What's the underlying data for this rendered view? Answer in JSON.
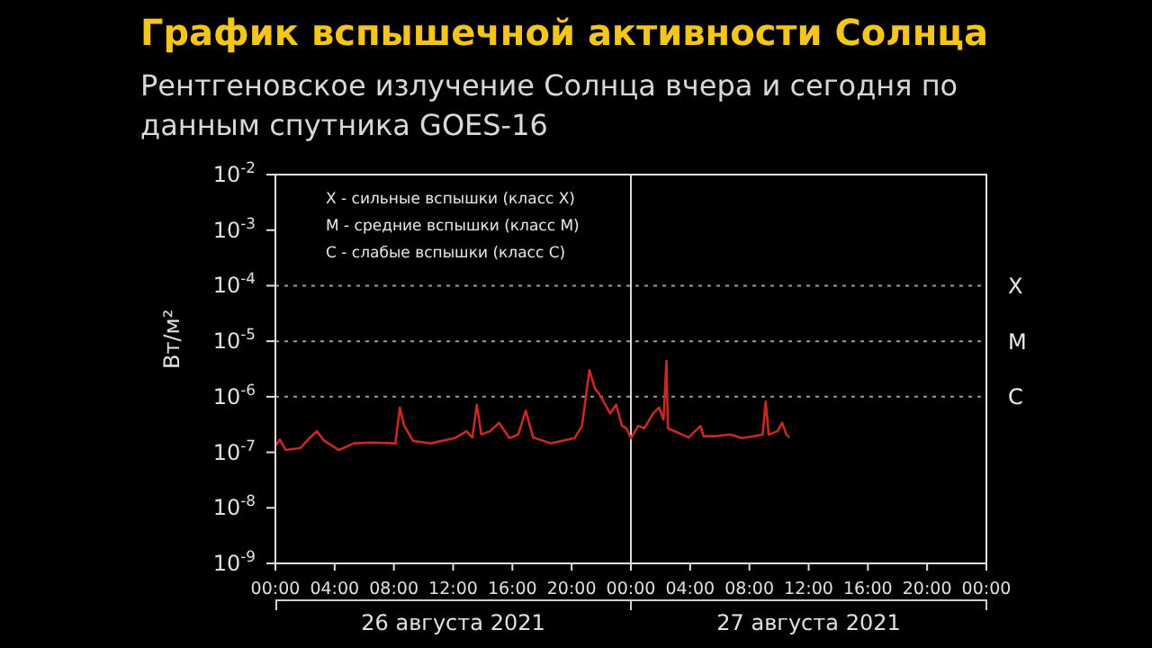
{
  "chart_data": {
    "type": "line",
    "title": "График вспышечной активности Солнца",
    "subtitle": "Рентгеновское излучение Солнца вчера и сегодня по данным спутника GOES-16",
    "ylabel": "Вт/м²",
    "annotations": [
      "X - сильные вспышки (класс X)",
      "M - средние вспышки (класс M)",
      "C - слабые вспышки (класс C)",
      "26 августа 2021",
      "27 августа 2021"
    ],
    "x": [
      "2021-08-26T00:00",
      "2021-08-26T00:18",
      "2021-08-26T00:42",
      "2021-08-26T01:42",
      "2021-08-26T02:18",
      "2021-08-26T02:48",
      "2021-08-26T03:18",
      "2021-08-26T04:18",
      "2021-08-26T05:18",
      "2021-08-26T06:30",
      "2021-08-26T08:06",
      "2021-08-26T08:24",
      "2021-08-26T08:42",
      "2021-08-26T09:18",
      "2021-08-26T10:30",
      "2021-08-26T12:06",
      "2021-08-26T12:54",
      "2021-08-26T13:18",
      "2021-08-26T13:36",
      "2021-08-26T13:54",
      "2021-08-26T14:30",
      "2021-08-26T15:06",
      "2021-08-26T15:48",
      "2021-08-26T16:24",
      "2021-08-26T16:54",
      "2021-08-26T17:24",
      "2021-08-26T18:36",
      "2021-08-26T20:12",
      "2021-08-26T20:42",
      "2021-08-26T21:12",
      "2021-08-26T21:36",
      "2021-08-26T21:48",
      "2021-08-26T22:36",
      "2021-08-26T23:00",
      "2021-08-26T23:24",
      "2021-08-26T23:42",
      "2021-08-27T00:00",
      "2021-08-27T00:30",
      "2021-08-27T00:54",
      "2021-08-27T01:30",
      "2021-08-27T01:54",
      "2021-08-27T02:12",
      "2021-08-27T02:24",
      "2021-08-27T02:30",
      "2021-08-27T03:06",
      "2021-08-27T03:54",
      "2021-08-27T04:42",
      "2021-08-27T04:54",
      "2021-08-27T05:42",
      "2021-08-27T06:42",
      "2021-08-27T07:30",
      "2021-08-27T08:18",
      "2021-08-27T08:54",
      "2021-08-27T09:06",
      "2021-08-27T09:18",
      "2021-08-27T09:54",
      "2021-08-27T10:12",
      "2021-08-27T10:30",
      "2021-08-27T10:42"
    ],
    "values": [
      1.3e-07,
      1.7e-07,
      1.1e-07,
      1.2e-07,
      1.8e-07,
      2.4e-07,
      1.6e-07,
      1.1e-07,
      1.45e-07,
      1.5e-07,
      1.45e-07,
      6.4e-07,
      3e-07,
      1.6e-07,
      1.45e-07,
      1.8e-07,
      2.4e-07,
      1.85e-07,
      7.2e-07,
      2.1e-07,
      2.4e-07,
      3.4e-07,
      1.8e-07,
      2.1e-07,
      5.6e-07,
      1.85e-07,
      1.45e-07,
      1.8e-07,
      3e-07,
      3e-06,
      1.35e-06,
      1.2e-06,
      5e-07,
      7.2e-07,
      3e-07,
      2.7e-07,
      1.8e-07,
      3e-07,
      2.7e-07,
      5e-07,
      6.4e-07,
      3.9e-07,
      4.4e-06,
      2.7e-07,
      2.3e-07,
      1.85e-07,
      3e-07,
      1.95e-07,
      1.95e-07,
      2.1e-07,
      1.8e-07,
      1.95e-07,
      2.1e-07,
      8.2e-07,
      2.1e-07,
      2.4e-07,
      3.4e-07,
      2.1e-07,
      1.85e-07
    ],
    "color": "#c62a22",
    "log": "y",
    "marker": "none",
    "line_style": "solid",
    "grid": false,
    "legend": false,
    "xlim": [
      "2021-08-26T00:00",
      "2021-08-28T00:00"
    ],
    "xticks": [
      {
        "value": "2021-08-26T00:00",
        "label": "00:00"
      },
      {
        "value": "2021-08-26T04:00",
        "label": "04:00"
      },
      {
        "value": "2021-08-26T08:00",
        "label": "08:00"
      },
      {
        "value": "2021-08-26T12:00",
        "label": "12:00"
      },
      {
        "value": "2021-08-26T16:00",
        "label": "16:00"
      },
      {
        "value": "2021-08-26T20:00",
        "label": "20:00"
      },
      {
        "value": "2021-08-27T00:00",
        "label": "00:00"
      },
      {
        "value": "2021-08-27T04:00",
        "label": "04:00"
      },
      {
        "value": "2021-08-27T08:00",
        "label": "08:00"
      },
      {
        "value": "2021-08-27T12:00",
        "label": "12:00"
      },
      {
        "value": "2021-08-27T16:00",
        "label": "16:00"
      },
      {
        "value": "2021-08-27T20:00",
        "label": "20:00"
      },
      {
        "value": "2021-08-28T00:00",
        "label": "00:00"
      }
    ],
    "ylim": [
      1e-09,
      0.01
    ],
    "yticks": [
      {
        "value": 1e-09,
        "label": "10$^{-9}$"
      },
      {
        "value": 1e-08,
        "label": "10$^{-8}$"
      },
      {
        "value": 1e-07,
        "label": "10$^{-7}$"
      },
      {
        "value": 1e-06,
        "label": "10$^{-6}$"
      },
      {
        "value": 1e-05,
        "label": "10$^{-5}$"
      },
      {
        "value": 0.0001,
        "label": "10$^{-4}$"
      },
      {
        "value": 0.001,
        "label": "10$^{-3}$"
      },
      {
        "value": 0.01,
        "label": "10$^{-2}$"
      }
    ],
    "ref_lines": [
      {
        "axis": "x",
        "value": "2021-08-27T00:00",
        "color": "#d8d8d8",
        "line_style": "solid"
      },
      {
        "axis": "y",
        "value": 1e-06,
        "label": "C",
        "color": "#9a9a9a",
        "line_style": "dotted"
      },
      {
        "axis": "y",
        "value": 1e-05,
        "label": "M",
        "color": "#9a9a9a",
        "line_style": "dotted"
      },
      {
        "axis": "y",
        "value": 0.0001,
        "label": "X",
        "color": "#9a9a9a",
        "line_style": "dotted"
      }
    ]
  }
}
